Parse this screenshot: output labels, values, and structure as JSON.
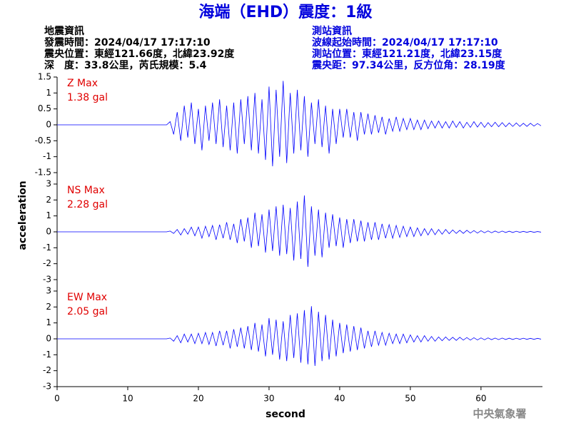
{
  "header": {
    "title": "海端（EHD）震度：1級",
    "left": [
      "地震資訊",
      "發震時間：2024/04/17 17:17:10",
      "震央位置：東經121.66度，北緯23.92度",
      "深　度：33.8公里，芮氏規模：5.4"
    ],
    "right": [
      "測站資訊",
      "波線起始時間：2024/04/17 17:17:10",
      "測站位置：東經121.21度，北緯23.15度",
      "震央距：97.34公里，反方位角：28.19度"
    ]
  },
  "footer": "中央氣象署",
  "chart_data": {
    "type": "line",
    "xlabel": "second",
    "ylabel": "acceleration",
    "xlim": [
      0,
      68.7
    ],
    "xticks": [
      0,
      10,
      20,
      30,
      40,
      50,
      60
    ],
    "x": [
      0,
      15.5,
      16,
      16.5,
      17,
      17.5,
      18,
      18.5,
      19,
      19.5,
      20,
      20.5,
      21,
      21.5,
      22,
      22.5,
      23,
      23.5,
      24,
      24.5,
      25,
      25.5,
      26,
      26.5,
      27,
      27.5,
      28,
      28.5,
      29,
      29.5,
      30,
      30.5,
      31,
      31.5,
      32,
      32.5,
      33,
      33.5,
      34,
      34.5,
      35,
      35.5,
      36,
      36.5,
      37,
      37.5,
      38,
      38.5,
      39,
      39.5,
      40,
      40.5,
      41,
      41.5,
      42,
      42.5,
      43,
      43.5,
      44,
      44.5,
      45,
      45.5,
      46,
      46.5,
      47,
      47.5,
      48,
      48.5,
      49,
      49.5,
      50,
      50.5,
      51,
      51.5,
      52,
      52.5,
      53,
      53.5,
      54,
      54.5,
      55,
      55.5,
      56,
      56.5,
      57,
      57.5,
      58,
      58.5,
      59,
      59.5,
      60,
      60.5,
      61,
      61.5,
      62,
      62.5,
      63,
      63.5,
      64,
      64.5,
      65,
      65.5,
      66,
      66.5,
      67,
      67.5,
      68,
      68.5
    ],
    "panels": [
      {
        "name": "Z Max",
        "peak": "1.38 gal",
        "color": "#0000ff",
        "ylim": [
          -1.5,
          1.5
        ],
        "yticks": [
          -1.5,
          -1,
          -0.5,
          0,
          0.5,
          1,
          1.5
        ],
        "values": [
          0,
          0,
          0.1,
          -0.3,
          0.4,
          -0.5,
          0.6,
          -0.4,
          0.7,
          -0.6,
          0.5,
          -0.8,
          0.6,
          -0.5,
          0.7,
          -0.6,
          0.8,
          -0.7,
          0.6,
          -0.8,
          0.7,
          -0.9,
          0.8,
          -0.6,
          0.9,
          -0.8,
          1.0,
          -0.9,
          0.8,
          -1.1,
          1.2,
          -1.3,
          1.1,
          -1.0,
          1.38,
          -1.2,
          1.0,
          -0.9,
          1.1,
          -0.8,
          0.9,
          -1.0,
          0.7,
          -0.6,
          0.8,
          -0.7,
          0.6,
          -0.9,
          0.5,
          -0.6,
          0.5,
          -0.4,
          0.5,
          -0.4,
          0.4,
          -0.5,
          0.4,
          -0.3,
          0.35,
          -0.3,
          0.3,
          -0.25,
          0.25,
          -0.3,
          0.2,
          -0.2,
          0.25,
          -0.2,
          0.2,
          -0.15,
          0.2,
          -0.15,
          0.15,
          -0.15,
          0.15,
          -0.12,
          0.12,
          -0.1,
          0.12,
          -0.1,
          0.1,
          -0.1,
          0.12,
          -0.08,
          0.1,
          -0.1,
          0.08,
          -0.08,
          0.1,
          -0.07,
          0.08,
          -0.08,
          0.07,
          -0.06,
          0.08,
          -0.06,
          0.07,
          -0.06,
          0.06,
          -0.05,
          0.06,
          -0.05,
          0.05,
          -0.05,
          0.05,
          -0.04,
          0.04,
          -0.03
        ]
      },
      {
        "name": "NS Max",
        "peak": "2.28 gal",
        "color": "#0000ff",
        "ylim": [
          -3,
          3
        ],
        "yticks": [
          -3,
          -2,
          -1,
          0,
          1,
          2,
          3
        ],
        "values": [
          0,
          0,
          0.05,
          -0.1,
          0.15,
          -0.2,
          0.2,
          -0.15,
          0.3,
          -0.25,
          0.3,
          -0.4,
          0.35,
          -0.3,
          0.4,
          -0.5,
          0.45,
          -0.4,
          0.6,
          -0.5,
          0.5,
          -0.7,
          0.8,
          -0.6,
          0.9,
          -1.0,
          1.2,
          -0.9,
          1.1,
          -1.3,
          1.4,
          -1.2,
          1.6,
          -1.5,
          1.7,
          -1.4,
          1.5,
          -1.8,
          1.9,
          -1.7,
          2.28,
          -2.2,
          1.6,
          -1.5,
          1.4,
          -1.6,
          1.2,
          -1.0,
          1.1,
          -0.9,
          0.9,
          -1.0,
          0.8,
          -0.7,
          0.8,
          -0.6,
          0.7,
          -0.6,
          0.6,
          -0.5,
          0.6,
          -0.5,
          0.5,
          -0.4,
          0.45,
          -0.4,
          0.4,
          -0.35,
          0.35,
          -0.3,
          0.3,
          -0.3,
          0.25,
          -0.25,
          0.2,
          -0.2,
          0.2,
          -0.18,
          0.15,
          -0.15,
          0.15,
          -0.12,
          0.12,
          -0.1,
          0.1,
          -0.1,
          0.1,
          -0.08,
          0.08,
          -0.08,
          0.07,
          -0.06,
          0.06,
          -0.06,
          0.05,
          -0.05,
          0.05,
          -0.04,
          0.04,
          -0.04,
          0.04,
          -0.03,
          0.03,
          -0.03,
          0.03,
          -0.03,
          0.02,
          -0.02
        ]
      },
      {
        "name": "EW Max",
        "peak": "2.05 gal",
        "color": "#0000ff",
        "ylim": [
          -3,
          3
        ],
        "yticks": [
          -3,
          -2,
          -1,
          0,
          1,
          2,
          3
        ],
        "values": [
          0,
          0,
          0.05,
          -0.15,
          0.2,
          -0.25,
          0.3,
          -0.2,
          0.3,
          -0.3,
          0.35,
          -0.3,
          0.4,
          -0.35,
          0.4,
          -0.45,
          0.5,
          -0.4,
          0.5,
          -0.6,
          0.6,
          -0.5,
          0.7,
          -0.6,
          0.8,
          -0.7,
          1.0,
          -0.8,
          0.9,
          -1.1,
          1.3,
          -1.0,
          1.2,
          -1.3,
          1.1,
          -1.4,
          1.5,
          -1.2,
          1.6,
          -1.5,
          1.8,
          -1.6,
          2.05,
          -1.7,
          1.7,
          -1.4,
          1.5,
          -1.3,
          1.2,
          -1.1,
          1.0,
          -0.9,
          0.9,
          -0.8,
          0.8,
          -0.7,
          0.7,
          -0.6,
          0.5,
          -0.5,
          0.5,
          -0.4,
          0.4,
          -0.4,
          0.35,
          -0.3,
          0.3,
          -0.3,
          0.3,
          -0.25,
          0.25,
          -0.2,
          0.2,
          -0.2,
          0.2,
          -0.15,
          0.15,
          -0.15,
          0.12,
          -0.12,
          0.12,
          -0.1,
          0.1,
          -0.1,
          0.1,
          -0.08,
          0.08,
          -0.08,
          0.07,
          -0.07,
          0.06,
          -0.06,
          0.06,
          -0.05,
          0.05,
          -0.05,
          0.05,
          -0.04,
          0.04,
          -0.04,
          0.04,
          -0.03,
          0.04,
          -0.03,
          0.03,
          -0.03,
          0.03,
          -0.02
        ]
      }
    ]
  }
}
